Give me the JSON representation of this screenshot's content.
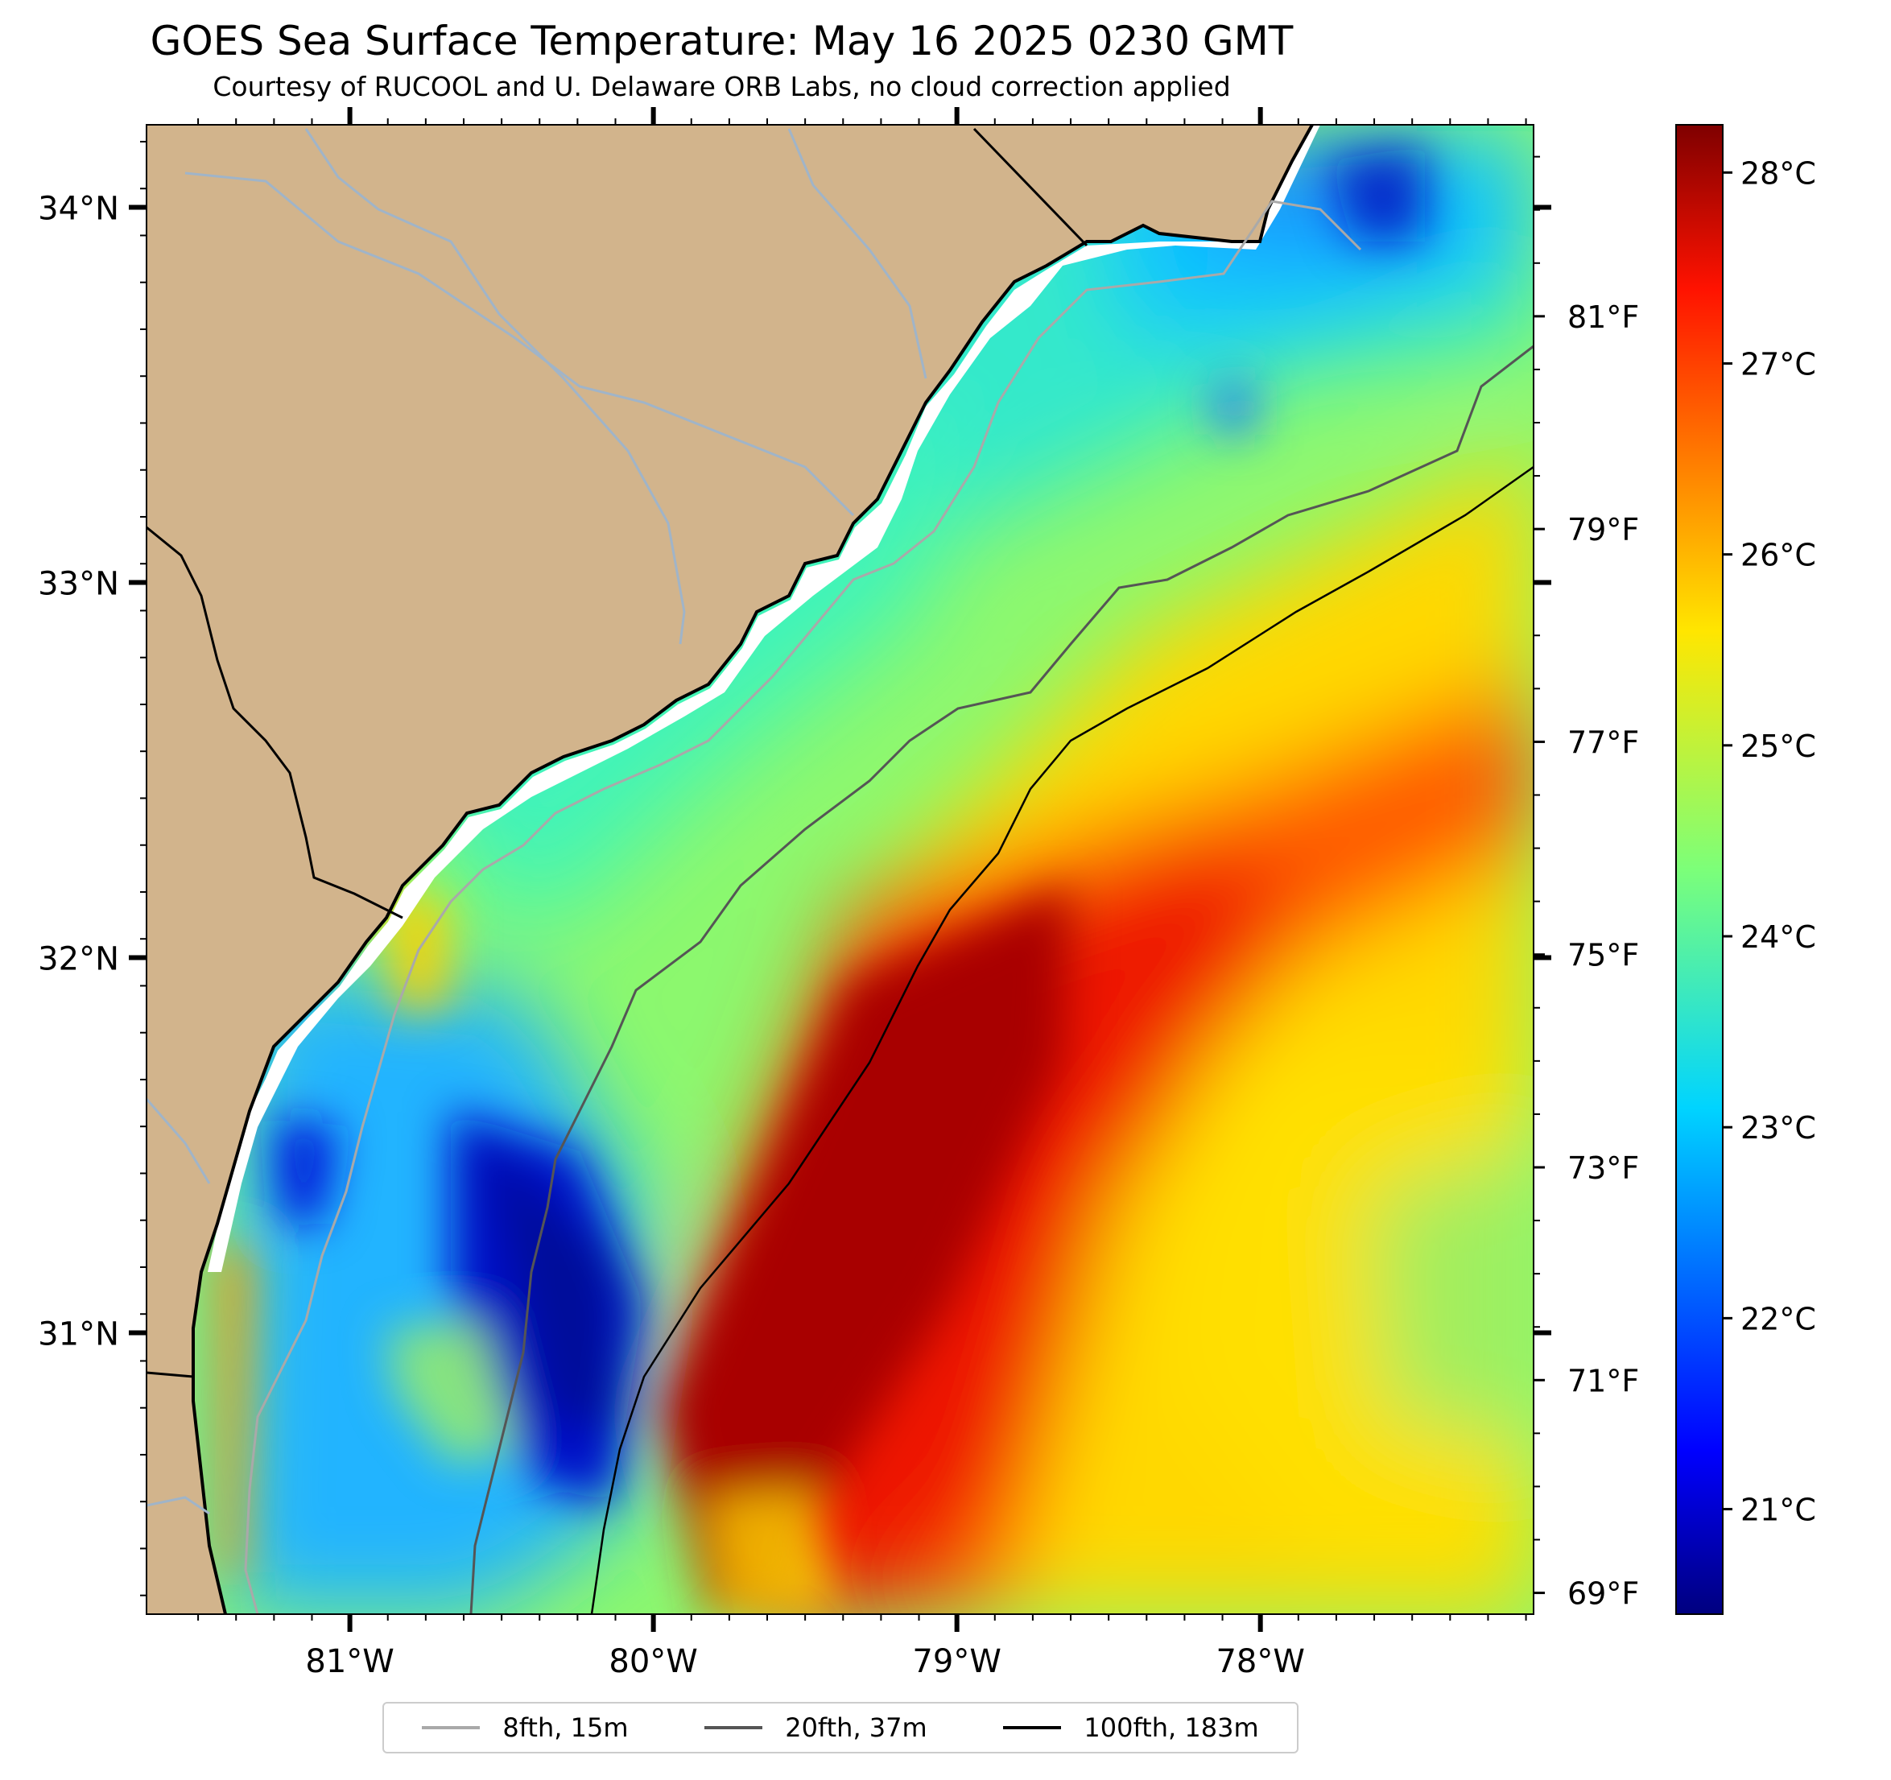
{
  "title": "GOES Sea Surface Temperature: May 16 2025 0230 GMT",
  "subtitle": "Courtesy of RUCOOL and U. Delaware ORB Labs, no cloud correction applied",
  "map": {
    "extent": {
      "lon_min": -81.67,
      "lon_max": -77.1,
      "lat_min": 30.25,
      "lat_max": 34.22
    },
    "lat_ticks": [
      {
        "value": 34,
        "label": "34°N"
      },
      {
        "value": 33,
        "label": "33°N"
      },
      {
        "value": 32,
        "label": "32°N"
      },
      {
        "value": 31,
        "label": "31°N"
      }
    ],
    "lon_ticks": [
      {
        "value": -81,
        "label": "81°W"
      },
      {
        "value": -80,
        "label": "80°W"
      },
      {
        "value": -79,
        "label": "79°W"
      },
      {
        "value": -78,
        "label": "78°W"
      }
    ],
    "land_color": "#d2b48c",
    "river_color": "#a0b4c8"
  },
  "fahrenheit_axis": {
    "range": [
      68.8,
      82.8
    ],
    "ticks": [
      {
        "value": 81,
        "label": "81°F"
      },
      {
        "value": 79,
        "label": "79°F"
      },
      {
        "value": 77,
        "label": "77°F"
      },
      {
        "value": 75,
        "label": "75°F"
      },
      {
        "value": 73,
        "label": "73°F"
      },
      {
        "value": 71,
        "label": "71°F"
      },
      {
        "value": 69,
        "label": "69°F"
      }
    ]
  },
  "colorbar": {
    "range": [
      20.45,
      28.25
    ],
    "colormap": "jet",
    "ticks": [
      {
        "value": 28,
        "label": "28°C"
      },
      {
        "value": 27,
        "label": "27°C"
      },
      {
        "value": 26,
        "label": "26°C"
      },
      {
        "value": 25,
        "label": "25°C"
      },
      {
        "value": 24,
        "label": "24°C"
      },
      {
        "value": 23,
        "label": "23°C"
      },
      {
        "value": 22,
        "label": "22°C"
      },
      {
        "value": 21,
        "label": "21°C"
      }
    ]
  },
  "legend": [
    {
      "label": "8fth, 15m",
      "color": "#a9a9a9"
    },
    {
      "label": "20fth, 37m",
      "color": "#555555"
    },
    {
      "label": "100fth, 183m",
      "color": "#000000"
    }
  ]
}
